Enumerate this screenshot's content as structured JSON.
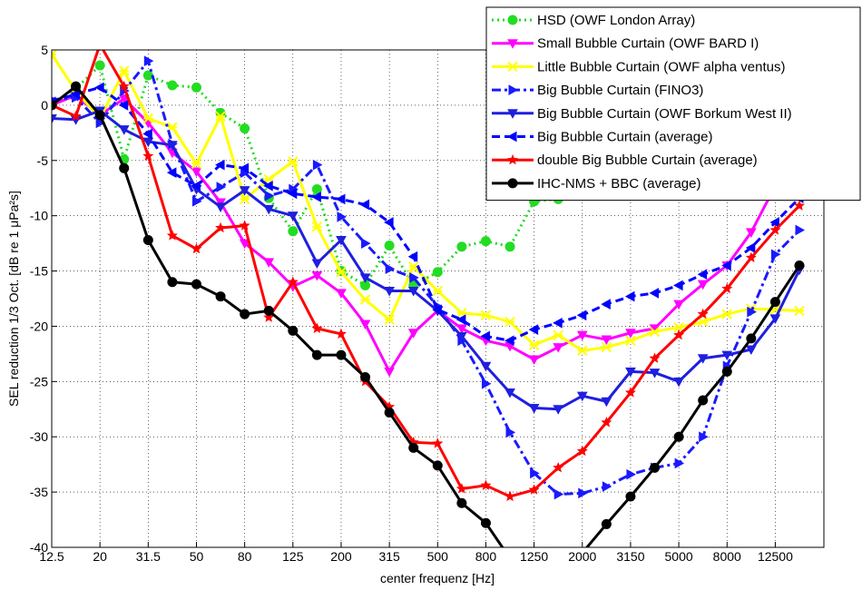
{
  "chart_data": {
    "type": "line",
    "xlabel": "center frequenz [Hz]",
    "ylabel": "SEL reduction 1/3 Oct. [dB re 1 μPa²s]",
    "categories": [
      "12.5",
      null,
      "20",
      null,
      "31.5",
      null,
      "50",
      null,
      "80",
      null,
      "125",
      null,
      "200",
      null,
      "315",
      null,
      "500",
      null,
      "800",
      null,
      "1250",
      null,
      "2000",
      null,
      "3150",
      null,
      "5000",
      null,
      "8000",
      null,
      "12500",
      null
    ],
    "ylim": [
      -40,
      5
    ],
    "yticks": [
      -40,
      -35,
      -30,
      -25,
      -20,
      -15,
      -10,
      -5,
      0,
      5
    ],
    "grid": true,
    "legend": "upper right",
    "series": [
      {
        "name": "HSD (OWF London Array)",
        "color": "#22dd22",
        "marker": "circle",
        "linestyle": "dotted",
        "values": [
          0,
          1.5,
          3.6,
          -4.9,
          2.7,
          1.8,
          1.6,
          -0.7,
          -2.1,
          -8.4,
          -11.4,
          -7.6,
          -15,
          -16.3,
          -12.7,
          -16.3,
          -15.1,
          -12.8,
          -12.3,
          -12.8,
          -8.7,
          -8.5,
          null,
          null,
          null,
          null,
          null,
          null,
          null,
          null,
          null,
          null
        ]
      },
      {
        "name": "Small Bubble Curtain (OWF BARD I)",
        "color": "#ff00ff",
        "marker": "tri-down",
        "linestyle": "solid",
        "values": [
          0,
          0.9,
          -0.9,
          0.6,
          -1.6,
          -4.3,
          -6,
          -8.8,
          -12.5,
          -14.2,
          -16.4,
          -15.4,
          -17,
          -19.8,
          -24.1,
          -20.6,
          -18.6,
          -20.2,
          -21.3,
          -21.8,
          -23,
          -21.9,
          -20.8,
          -21.2,
          -20.6,
          -20.2,
          -18,
          -16.2,
          -14.5,
          -11.5,
          -7.3,
          -4
        ]
      },
      {
        "name": "Little Bubble Curtain (OWF alpha ventus)",
        "color": "#ffff00",
        "marker": "x",
        "linestyle": "solid",
        "values": [
          4.6,
          1.3,
          -1.2,
          3.1,
          -1.2,
          -2,
          -5.3,
          -1,
          -8.5,
          -6.7,
          -5.1,
          -11,
          -15.1,
          -17.6,
          -19.4,
          -14.6,
          -16.8,
          -18.8,
          -19,
          -19.6,
          -21.7,
          -20.8,
          -22.2,
          -21.9,
          -21.3,
          -20.5,
          -20.1,
          -19.6,
          -18.9,
          -18.4,
          -18.5,
          -18.6
        ]
      },
      {
        "name": "Big Bubble Curtain (FINO3)",
        "color": "#1a1aff",
        "marker": "tri-right",
        "linestyle": "dashdot",
        "values": [
          0.5,
          0.7,
          -1.6,
          1.3,
          4,
          -3.5,
          -8.7,
          -7.4,
          -6.1,
          -8.2,
          -7.6,
          -5.4,
          -10.1,
          -12.5,
          -14.8,
          -15.6,
          -18.2,
          -21.3,
          -25.2,
          -29.6,
          -33.3,
          -35.2,
          -35.1,
          -34.5,
          -33.4,
          -32.8,
          -32.4,
          -30,
          -23.6,
          -18.7,
          -13.5,
          -11.3
        ]
      },
      {
        "name": "Big Bubble Curtain (OWF Borkum West II)",
        "color": "#1f1fdf",
        "marker": "tri-down",
        "linestyle": "solid",
        "values": [
          -1.2,
          -1.3,
          -0.5,
          -2.2,
          -3.3,
          -3.6,
          -7.6,
          -9.2,
          -7.7,
          -9.4,
          -10,
          -14.3,
          -12.2,
          -15.6,
          -16.8,
          -16.8,
          -18.6,
          -20.9,
          -23.6,
          -26,
          -27.4,
          -27.5,
          -26.3,
          -26.8,
          -24.1,
          -24.2,
          -25,
          -22.9,
          -22.6,
          -22.1,
          -19.3,
          -14.9
        ]
      },
      {
        "name": " Big Bubble Curtain (average)",
        "color": "#0000ff",
        "marker": "tri-left",
        "linestyle": "dashed",
        "values": [
          0.3,
          1,
          1.6,
          0,
          -2.6,
          -6.1,
          -7.3,
          -5.4,
          -5.7,
          -7.3,
          -8,
          -8.3,
          -8.5,
          -9,
          -10.6,
          -13.7,
          -18.5,
          -19.4,
          -20.9,
          -21.3,
          -20.3,
          -19.7,
          -19,
          -18,
          -17.3,
          -17,
          -16.3,
          -15.3,
          -14.5,
          -12.9,
          -10.6,
          -8.4
        ]
      },
      {
        "name": "double Big Bubble Curtain (average)",
        "color": "#ff0000",
        "marker": "star",
        "linestyle": "solid",
        "values": [
          0,
          -1,
          5.5,
          1.7,
          -4.6,
          -11.8,
          -13,
          -11.1,
          -10.9,
          -19.2,
          -16,
          -20.2,
          -20.7,
          -25,
          -27.3,
          -30.5,
          -30.6,
          -34.7,
          -34.4,
          -35.4,
          -34.8,
          -32.8,
          -31.3,
          -28.7,
          -26,
          -22.9,
          -20.8,
          -18.9,
          -16.6,
          -13.8,
          -11.3,
          -9.1
        ]
      },
      {
        "name": "IHC-NMS + BBC (average)",
        "color": "#000000",
        "marker": "circle",
        "linestyle": "solid",
        "values": [
          0,
          1.7,
          -0.9,
          -5.7,
          -12.2,
          -16,
          -16.2,
          -17.3,
          -18.9,
          -18.6,
          -20.4,
          -22.6,
          -22.6,
          -24.6,
          -27.8,
          -31,
          -32.6,
          -36,
          -37.8,
          -41,
          -43,
          -42,
          -40.5,
          -37.9,
          -35.4,
          -32.8,
          -30,
          -26.7,
          -24.1,
          -21.1,
          -17.8,
          -14.5
        ]
      }
    ]
  }
}
